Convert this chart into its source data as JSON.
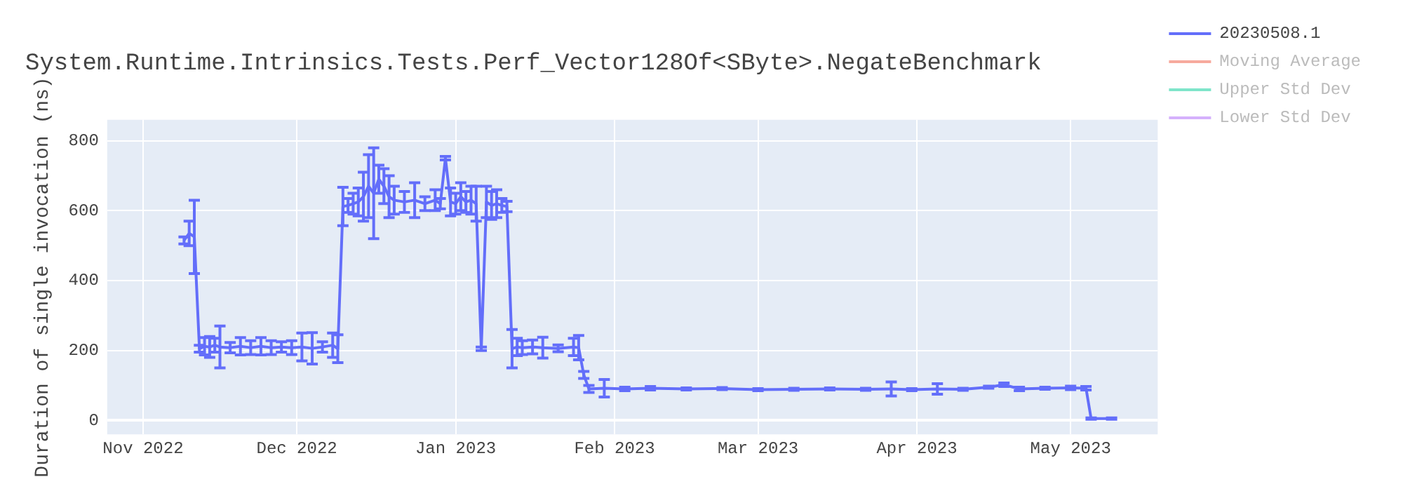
{
  "chart_data": {
    "type": "line",
    "title": "System.Runtime.Intrinsics.Tests.Perf_Vector128Of<SByte>.NegateBenchmark",
    "ylabel": "Duration of single invocation (ns)",
    "x": [
      "2022-11-09",
      "2022-11-10",
      "2022-11-11",
      "2022-11-12",
      "2022-11-13",
      "2022-11-14",
      "2022-11-15",
      "2022-11-16",
      "2022-11-18",
      "2022-11-20",
      "2022-11-22",
      "2022-11-24",
      "2022-11-26",
      "2022-11-28",
      "2022-11-30",
      "2022-12-02",
      "2022-12-04",
      "2022-12-06",
      "2022-12-08",
      "2022-12-09",
      "2022-12-10",
      "2022-12-11",
      "2022-12-12",
      "2022-12-13",
      "2022-12-14",
      "2022-12-15",
      "2022-12-16",
      "2022-12-17",
      "2022-12-18",
      "2022-12-19",
      "2022-12-20",
      "2022-12-22",
      "2022-12-24",
      "2022-12-26",
      "2022-12-28",
      "2022-12-29",
      "2022-12-30",
      "2022-12-31",
      "2023-01-01",
      "2023-01-02",
      "2023-01-03",
      "2023-01-04",
      "2023-01-05",
      "2023-01-06",
      "2023-01-07",
      "2023-01-08",
      "2023-01-09",
      "2023-01-10",
      "2023-01-11",
      "2023-01-12",
      "2023-01-13",
      "2023-01-14",
      "2023-01-16",
      "2023-01-18",
      "2023-01-21",
      "2023-01-24",
      "2023-01-25",
      "2023-01-26",
      "2023-01-27",
      "2023-01-30",
      "2023-02-03",
      "2023-02-08",
      "2023-02-15",
      "2023-02-22",
      "2023-03-01",
      "2023-03-08",
      "2023-03-15",
      "2023-03-22",
      "2023-03-27",
      "2023-03-31",
      "2023-04-05",
      "2023-04-10",
      "2023-04-15",
      "2023-04-18",
      "2023-04-21",
      "2023-04-26",
      "2023-05-01",
      "2023-05-04",
      "2023-05-05",
      "2023-05-09"
    ],
    "series": [
      {
        "name": "20230508.1",
        "color": "#636efa",
        "values": [
          515,
          535,
          525,
          205,
          212,
          210,
          215,
          210,
          208,
          212,
          208,
          212,
          208,
          210,
          208,
          210,
          206,
          210,
          215,
          205,
          612,
          615,
          620,
          625,
          640,
          670,
          650,
          690,
          670,
          640,
          630,
          625,
          630,
          620,
          630,
          620,
          750,
          625,
          620,
          640,
          625,
          630,
          620,
          205,
          625,
          615,
          620,
          615,
          612,
          205,
          210,
          208,
          210,
          208,
          206,
          210,
          208,
          130,
          90,
          92,
          90,
          92,
          90,
          91,
          88,
          89,
          90,
          89,
          90,
          88,
          90,
          89,
          95,
          102,
          90,
          92,
          93,
          92,
          5,
          5
        ],
        "errors": [
          10,
          35,
          105,
          10,
          25,
          30,
          20,
          60,
          15,
          25,
          20,
          25,
          20,
          15,
          20,
          40,
          45,
          15,
          35,
          40,
          55,
          20,
          30,
          40,
          70,
          90,
          130,
          40,
          50,
          60,
          40,
          30,
          50,
          20,
          30,
          15,
          5,
          40,
          30,
          40,
          30,
          40,
          50,
          5,
          45,
          40,
          40,
          20,
          15,
          55,
          25,
          20,
          20,
          30,
          10,
          25,
          35,
          10,
          10,
          25,
          5,
          5,
          3,
          3,
          3,
          3,
          3,
          3,
          20,
          3,
          15,
          3,
          3,
          5,
          5,
          3,
          5,
          5,
          2,
          2
        ]
      },
      {
        "name": "Moving Average",
        "color": "#ef553b",
        "values": [
          null,
          null,
          null,
          null,
          null,
          null,
          null,
          null,
          null,
          null,
          null,
          null,
          null,
          null,
          null,
          null,
          null,
          null,
          null,
          null,
          null,
          null,
          null,
          null,
          null,
          null,
          null,
          null,
          null,
          null,
          null,
          null,
          null,
          null,
          null,
          null,
          null,
          null,
          null,
          null,
          null,
          null,
          null,
          null,
          null,
          null,
          null,
          null,
          null,
          null,
          null,
          null,
          null,
          null,
          null,
          null,
          null,
          null,
          null,
          null,
          null,
          null,
          null,
          null,
          null,
          null,
          null,
          null,
          null,
          null,
          null,
          null,
          null,
          null,
          null,
          null,
          null,
          null,
          null,
          null
        ]
      },
      {
        "name": "Upper Std Dev",
        "color": "#00cc96",
        "values": [
          null,
          null,
          null,
          null,
          null,
          null,
          null,
          null,
          null,
          null,
          null,
          null,
          null,
          null,
          null,
          null,
          null,
          null,
          null,
          null,
          null,
          null,
          null,
          null,
          null,
          null,
          null,
          null,
          null,
          null,
          null,
          null,
          null,
          null,
          null,
          null,
          null,
          null,
          null,
          null,
          null,
          null,
          null,
          null,
          null,
          null,
          null,
          null,
          null,
          null,
          null,
          null,
          null,
          null,
          null,
          null,
          null,
          null,
          null,
          null,
          null,
          null,
          null,
          null,
          null,
          null,
          null,
          null,
          null,
          null,
          null,
          null,
          null,
          null,
          null,
          null,
          null,
          null,
          null,
          null
        ]
      },
      {
        "name": "Lower Std Dev",
        "color": "#ab63fa",
        "values": [
          null,
          null,
          null,
          null,
          null,
          null,
          null,
          null,
          null,
          null,
          null,
          null,
          null,
          null,
          null,
          null,
          null,
          null,
          null,
          null,
          null,
          null,
          null,
          null,
          null,
          null,
          null,
          null,
          null,
          null,
          null,
          null,
          null,
          null,
          null,
          null,
          null,
          null,
          null,
          null,
          null,
          null,
          null,
          null,
          null,
          null,
          null,
          null,
          null,
          null,
          null,
          null,
          null,
          null,
          null,
          null,
          null,
          null,
          null,
          null,
          null,
          null,
          null,
          null,
          null,
          null,
          null,
          null,
          null,
          null,
          null,
          null,
          null,
          null,
          null,
          null,
          null,
          null,
          null,
          null
        ]
      }
    ],
    "xlim": [
      "2022-10-25",
      "2023-05-18"
    ],
    "xticks": [
      {
        "value": "2022-11-01",
        "label": "Nov 2022"
      },
      {
        "value": "2022-12-01",
        "label": "Dec 2022"
      },
      {
        "value": "2023-01-01",
        "label": "Jan 2023"
      },
      {
        "value": "2023-02-01",
        "label": "Feb 2023"
      },
      {
        "value": "2023-03-01",
        "label": "Mar 2023"
      },
      {
        "value": "2023-04-01",
        "label": "Apr 2023"
      },
      {
        "value": "2023-05-01",
        "label": "May 2023"
      }
    ],
    "ylim": [
      -40,
      860
    ],
    "yticks": [
      0,
      200,
      400,
      600,
      800
    ],
    "grid": true,
    "legend": "top right",
    "marker": "none",
    "line_style": "solid"
  }
}
